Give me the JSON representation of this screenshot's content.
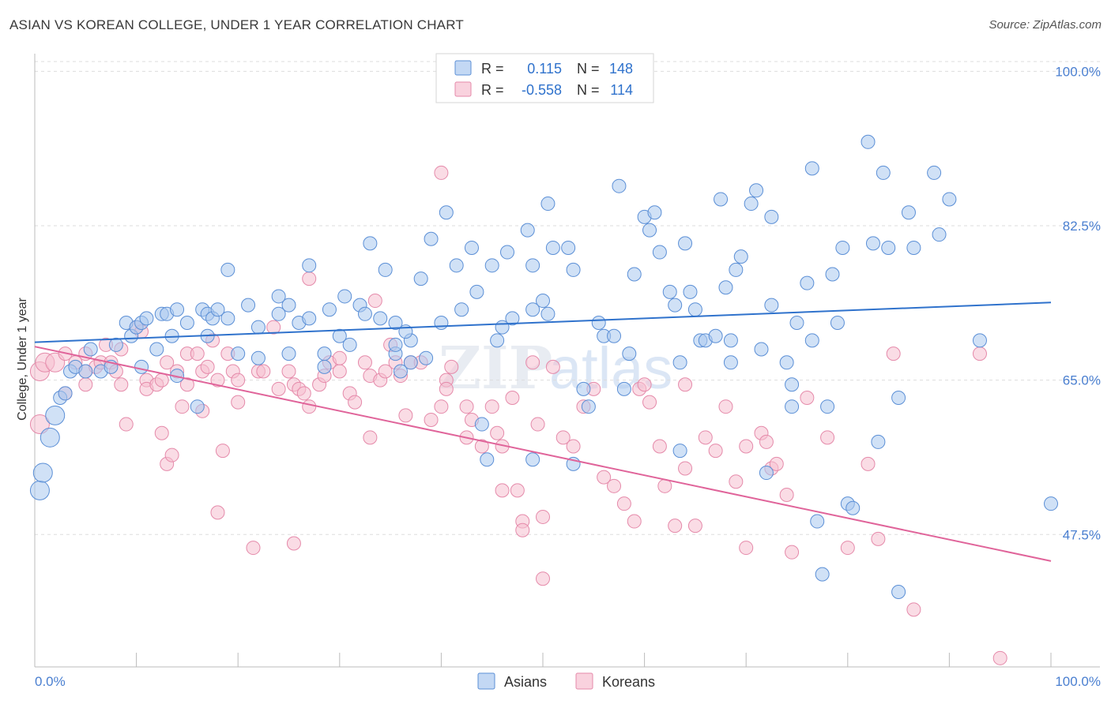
{
  "title": "ASIAN VS KOREAN COLLEGE, UNDER 1 YEAR CORRELATION CHART",
  "source": "Source: ZipAtlas.com",
  "colors": {
    "asians_fill": "#a9c8ef",
    "asians_stroke": "#5b8fd6",
    "asians_line": "#2f72cc",
    "koreans_fill": "#f6bfd0",
    "koreans_stroke": "#e58aaa",
    "koreans_line": "#e0649a",
    "tick_text": "#4a7fd0",
    "grid": "#dddddd"
  },
  "legend": {
    "rows": [
      {
        "r_label": "R =",
        "r_value": "0.115",
        "n_label": "N =",
        "n_value": "148"
      },
      {
        "r_label": "R =",
        "r_value": "-0.558",
        "n_label": "N =",
        "n_value": "114"
      }
    ]
  },
  "bottom_legend": [
    "Asians",
    "Koreans"
  ],
  "watermark": {
    "zip": "ZIP",
    "atlas": "atlas"
  },
  "chart_data": {
    "type": "scatter",
    "title": "ASIAN VS KOREAN COLLEGE, UNDER 1 YEAR CORRELATION CHART",
    "xlabel": "",
    "ylabel": "College, Under 1 year",
    "xlim": [
      0,
      100
    ],
    "ylim": [
      32.5,
      102
    ],
    "x_tick_labels": [
      "0.0%",
      "100.0%"
    ],
    "y_ticks": [
      47.5,
      65.0,
      82.5,
      100.0
    ],
    "y_tick_labels": [
      "47.5%",
      "65.0%",
      "82.5%",
      "100.0%"
    ],
    "grid": true,
    "legend_position": "top-center",
    "series": [
      {
        "name": "Asians",
        "r": 0.115,
        "n": 148,
        "trend": {
          "x": [
            0,
            100
          ],
          "y": [
            69.3,
            73.8
          ]
        },
        "points": [
          [
            0.5,
            52.5
          ],
          [
            0.8,
            54.5
          ],
          [
            1.5,
            58.5
          ],
          [
            2,
            61
          ],
          [
            2.5,
            63
          ],
          [
            3,
            63.5
          ],
          [
            3.5,
            66
          ],
          [
            4,
            66.5
          ],
          [
            5,
            66
          ],
          [
            5.5,
            68.5
          ],
          [
            6.5,
            66
          ],
          [
            7.5,
            66.5
          ],
          [
            8,
            69
          ],
          [
            9,
            71.5
          ],
          [
            9.5,
            70
          ],
          [
            10,
            71
          ],
          [
            10.5,
            71.5
          ],
          [
            10.5,
            66.5
          ],
          [
            11,
            72
          ],
          [
            12,
            68.5
          ],
          [
            12.5,
            72.5
          ],
          [
            13,
            72.5
          ],
          [
            13.5,
            70
          ],
          [
            14,
            73
          ],
          [
            14,
            65.5
          ],
          [
            15,
            71.5
          ],
          [
            16,
            62
          ],
          [
            16.5,
            73
          ],
          [
            17,
            72.5
          ],
          [
            17.5,
            72
          ],
          [
            18,
            73
          ],
          [
            17,
            70
          ],
          [
            19,
            72
          ],
          [
            20,
            68
          ],
          [
            19,
            77.5
          ],
          [
            21,
            73.5
          ],
          [
            22,
            67.5
          ],
          [
            22,
            71
          ],
          [
            24,
            72.5
          ],
          [
            24,
            74.5
          ],
          [
            25,
            73.5
          ],
          [
            25,
            68
          ],
          [
            26,
            71.5
          ],
          [
            27,
            78
          ],
          [
            27,
            72
          ],
          [
            28.5,
            66.5
          ],
          [
            28.5,
            68
          ],
          [
            29,
            73
          ],
          [
            30,
            70
          ],
          [
            30.5,
            74.5
          ],
          [
            31,
            69
          ],
          [
            32,
            73.5
          ],
          [
            32.5,
            72.5
          ],
          [
            33,
            80.5
          ],
          [
            34,
            72
          ],
          [
            34.5,
            77.5
          ],
          [
            35.5,
            68
          ],
          [
            35.5,
            69
          ],
          [
            35.5,
            71.5
          ],
          [
            36,
            66
          ],
          [
            37,
            69.5
          ],
          [
            36.5,
            70.5
          ],
          [
            37,
            67
          ],
          [
            38,
            76.5
          ],
          [
            38.5,
            67.5
          ],
          [
            39,
            81
          ],
          [
            40,
            71.5
          ],
          [
            40.5,
            84
          ],
          [
            41.5,
            78
          ],
          [
            42,
            73
          ],
          [
            43,
            80
          ],
          [
            43.5,
            75
          ],
          [
            44,
            60
          ],
          [
            44.5,
            56
          ],
          [
            45,
            78
          ],
          [
            45.5,
            69.5
          ],
          [
            46,
            71
          ],
          [
            46.5,
            79.5
          ],
          [
            47,
            72
          ],
          [
            48.5,
            82
          ],
          [
            49,
            73
          ],
          [
            49,
            78
          ],
          [
            49,
            56
          ],
          [
            50,
            74
          ],
          [
            50.5,
            72.5
          ],
          [
            50.5,
            85
          ],
          [
            51,
            80
          ],
          [
            52.5,
            80
          ],
          [
            53,
            77.5
          ],
          [
            53,
            55.5
          ],
          [
            54,
            64
          ],
          [
            54.5,
            62
          ],
          [
            55.5,
            71.5
          ],
          [
            56,
            70
          ],
          [
            57,
            70
          ],
          [
            57.5,
            87
          ],
          [
            58.5,
            68
          ],
          [
            58,
            64
          ],
          [
            59,
            77
          ],
          [
            60,
            83.5
          ],
          [
            60.5,
            82
          ],
          [
            61,
            84
          ],
          [
            61.5,
            79.5
          ],
          [
            62.5,
            75
          ],
          [
            63,
            73.5
          ],
          [
            63.5,
            57
          ],
          [
            63.5,
            67
          ],
          [
            64,
            80.5
          ],
          [
            64.5,
            75
          ],
          [
            65,
            73
          ],
          [
            65.5,
            69.5
          ],
          [
            66,
            69.5
          ],
          [
            67,
            70
          ],
          [
            67.5,
            85.5
          ],
          [
            68,
            75.5
          ],
          [
            68.5,
            69.5
          ],
          [
            68.5,
            67
          ],
          [
            69,
            77.5
          ],
          [
            69.5,
            79
          ],
          [
            70.5,
            85
          ],
          [
            71,
            86.5
          ],
          [
            71.5,
            68.5
          ],
          [
            72,
            54.5
          ],
          [
            72.5,
            83.5
          ],
          [
            72.5,
            73.5
          ],
          [
            74,
            67
          ],
          [
            74.5,
            62
          ],
          [
            74.5,
            64.5
          ],
          [
            75,
            71.5
          ],
          [
            76,
            76
          ],
          [
            76.5,
            89
          ],
          [
            76.5,
            69.5
          ],
          [
            77,
            49
          ],
          [
            77.5,
            43
          ],
          [
            78,
            62
          ],
          [
            78.5,
            77
          ],
          [
            79,
            71.5
          ],
          [
            79.5,
            80
          ],
          [
            80,
            51
          ],
          [
            80.5,
            50.5
          ],
          [
            82,
            92
          ],
          [
            82.5,
            80.5
          ],
          [
            83,
            58
          ],
          [
            83.5,
            88.5
          ],
          [
            84,
            80
          ],
          [
            85,
            63
          ],
          [
            85,
            41
          ],
          [
            86,
            84
          ],
          [
            86.5,
            80
          ],
          [
            88.5,
            88.5
          ],
          [
            89,
            81.5
          ],
          [
            90,
            85.5
          ],
          [
            93,
            69.5
          ],
          [
            100,
            51
          ]
        ]
      },
      {
        "name": "Koreans",
        "r": -0.558,
        "n": 114,
        "trend": {
          "x": [
            0,
            100
          ],
          "y": [
            68.8,
            44.5
          ]
        },
        "points": [
          [
            0.5,
            60
          ],
          [
            0.5,
            66
          ],
          [
            1,
            67
          ],
          [
            2,
            67
          ],
          [
            3,
            68
          ],
          [
            3,
            63.5
          ],
          [
            4,
            67
          ],
          [
            5,
            64.5
          ],
          [
            5,
            66
          ],
          [
            5,
            68
          ],
          [
            6,
            66.5
          ],
          [
            6.5,
            67
          ],
          [
            7,
            69
          ],
          [
            7.5,
            67
          ],
          [
            8,
            66
          ],
          [
            8.5,
            64.5
          ],
          [
            8.5,
            68.5
          ],
          [
            9,
            60
          ],
          [
            10,
            71
          ],
          [
            10.5,
            70.5
          ],
          [
            11,
            65
          ],
          [
            11,
            64
          ],
          [
            12,
            64.5
          ],
          [
            12.5,
            65
          ],
          [
            12.5,
            59
          ],
          [
            13,
            67
          ],
          [
            13,
            55.5
          ],
          [
            13.5,
            56.5
          ],
          [
            14,
            66
          ],
          [
            14.5,
            62
          ],
          [
            15,
            64.5
          ],
          [
            15,
            68
          ],
          [
            16,
            68
          ],
          [
            16.5,
            66
          ],
          [
            16.5,
            61.5
          ],
          [
            17,
            66.5
          ],
          [
            17.5,
            69.5
          ],
          [
            18,
            65
          ],
          [
            18.5,
            57
          ],
          [
            18,
            50
          ],
          [
            19,
            68
          ],
          [
            19.5,
            66
          ],
          [
            20,
            65
          ],
          [
            20,
            62.5
          ],
          [
            21.5,
            46
          ],
          [
            22,
            66
          ],
          [
            22.5,
            66
          ],
          [
            23.5,
            71
          ],
          [
            24,
            64
          ],
          [
            25,
            66
          ],
          [
            25.5,
            46.5
          ],
          [
            25.5,
            64.5
          ],
          [
            26,
            64
          ],
          [
            26.5,
            63.5
          ],
          [
            27,
            62
          ],
          [
            27,
            76.5
          ],
          [
            28,
            64.5
          ],
          [
            28.5,
            65.5
          ],
          [
            29,
            67
          ],
          [
            30,
            66
          ],
          [
            30,
            67.5
          ],
          [
            31,
            63.5
          ],
          [
            31.5,
            62.5
          ],
          [
            32.5,
            67
          ],
          [
            33,
            65.5
          ],
          [
            33,
            58.5
          ],
          [
            33.5,
            74
          ],
          [
            34,
            65
          ],
          [
            34.5,
            66
          ],
          [
            35,
            69
          ],
          [
            35.5,
            67
          ],
          [
            36,
            65.5
          ],
          [
            36.5,
            61
          ],
          [
            37,
            67
          ],
          [
            38,
            67
          ],
          [
            39,
            60.5
          ],
          [
            40,
            62
          ],
          [
            40.5,
            65
          ],
          [
            40,
            88.5
          ],
          [
            40.5,
            64
          ],
          [
            41,
            66.5
          ],
          [
            42.5,
            62
          ],
          [
            42.5,
            58.5
          ],
          [
            43,
            60.5
          ],
          [
            44,
            57.5
          ],
          [
            45,
            62
          ],
          [
            45.5,
            59
          ],
          [
            46,
            52.5
          ],
          [
            46,
            57.5
          ],
          [
            47,
            63
          ],
          [
            47.5,
            52.5
          ],
          [
            48,
            49
          ],
          [
            48,
            48
          ],
          [
            49,
            67
          ],
          [
            49.5,
            60
          ],
          [
            50,
            42.5
          ],
          [
            50,
            49.5
          ],
          [
            51,
            66.5
          ],
          [
            52,
            58.5
          ],
          [
            53,
            57.5
          ],
          [
            54,
            62
          ],
          [
            55,
            64
          ],
          [
            56,
            54
          ],
          [
            57,
            53
          ],
          [
            58,
            51
          ],
          [
            59,
            49
          ],
          [
            59.5,
            64
          ],
          [
            60,
            64.5
          ],
          [
            60.5,
            62.5
          ],
          [
            61.5,
            57.5
          ],
          [
            62,
            53
          ],
          [
            63,
            48.5
          ],
          [
            64,
            64.5
          ],
          [
            64,
            55
          ],
          [
            65,
            48.5
          ],
          [
            66,
            58.5
          ],
          [
            67,
            57
          ],
          [
            68,
            62
          ],
          [
            69,
            53.5
          ],
          [
            70,
            57.5
          ],
          [
            70,
            46
          ],
          [
            71.5,
            59
          ],
          [
            72,
            58
          ],
          [
            72.5,
            55
          ],
          [
            73,
            55.5
          ],
          [
            74,
            52
          ],
          [
            74.5,
            45.5
          ],
          [
            76,
            63
          ],
          [
            78,
            58.5
          ],
          [
            80,
            46
          ],
          [
            82,
            55.5
          ],
          [
            83,
            47
          ],
          [
            84.5,
            68
          ],
          [
            86.5,
            39
          ],
          [
            93,
            68
          ],
          [
            95,
            33.5
          ]
        ]
      }
    ]
  }
}
